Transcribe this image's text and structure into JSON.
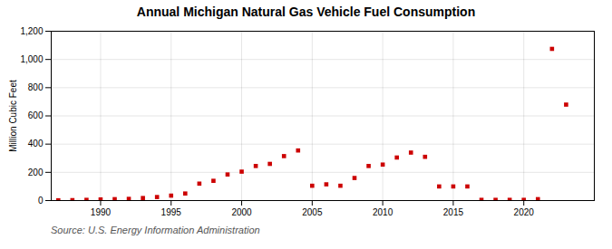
{
  "chart_data": {
    "type": "scatter",
    "title": "Annual Michigan Natural Gas Vehicle Fuel Consumption",
    "ylabel": "Million Cubic Feet",
    "source": "Source: U.S. Energy Information Administration",
    "x": [
      1987,
      1988,
      1989,
      1990,
      1991,
      1992,
      1993,
      1994,
      1995,
      1996,
      1997,
      1998,
      1999,
      2000,
      2001,
      2002,
      2003,
      2004,
      2005,
      2006,
      2007,
      2008,
      2009,
      2010,
      2011,
      2012,
      2013,
      2014,
      2015,
      2016,
      2017,
      2018,
      2019,
      2020,
      2021,
      2022,
      2023
    ],
    "values": [
      2,
      3,
      5,
      8,
      10,
      12,
      18,
      25,
      35,
      50,
      120,
      140,
      185,
      205,
      245,
      260,
      315,
      355,
      105,
      115,
      105,
      160,
      245,
      255,
      305,
      340,
      310,
      100,
      100,
      100,
      5,
      5,
      5,
      5,
      10,
      1075,
      680
    ],
    "color": "#cc0000",
    "marker": "square",
    "grid": true,
    "xlim": [
      1986.5,
      2025
    ],
    "xticks": [
      1990,
      1995,
      2000,
      2005,
      2010,
      2015,
      2020
    ],
    "ylim": [
      0,
      1200
    ],
    "yticks": [
      0,
      200,
      400,
      600,
      800,
      {
        "value": 1000,
        "label": "1,000"
      },
      {
        "value": 1200,
        "label": "1,200"
      }
    ]
  }
}
